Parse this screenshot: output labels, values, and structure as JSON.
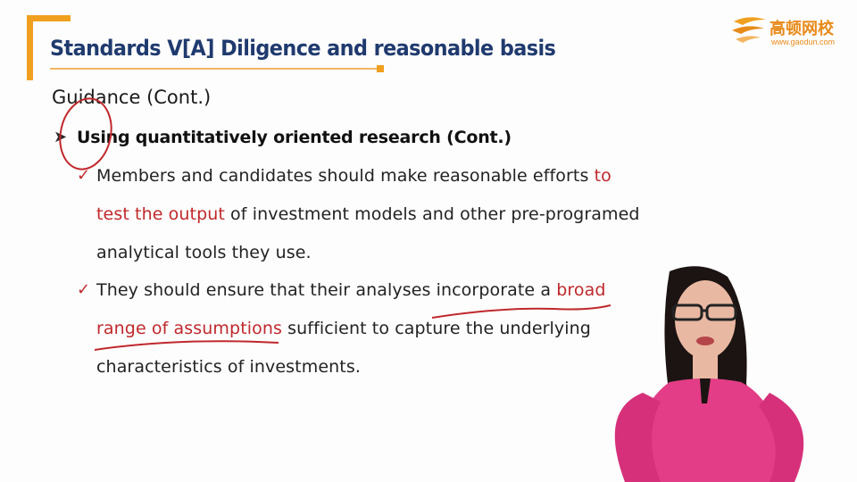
{
  "slide": {
    "title": "Standards V[A] Diligence and reasonable basis",
    "heading": "Guidance (Cont.)",
    "subheading": "Using quantitatively oriented research (Cont.)",
    "bullet1": {
      "line1_a": "Members and candidates should make reasonable efforts ",
      "line1_b": "to",
      "line2_a": "test the output",
      "line2_b": " of investment models and other pre-programed",
      "line3": "analytical tools they use."
    },
    "bullet2": {
      "line1_a": "They should ensure that their analyses incorporate a ",
      "line1_b": "broad",
      "line2_a": "range of assumptions",
      "line2_b": " sufficient to capture the underlying",
      "line3": "characteristics of investments."
    }
  },
  "logo": {
    "name_cn": "高顿网校",
    "url": "www.gaodun.com"
  },
  "colors": {
    "title": "#1f3a6e",
    "accent_orange": "#f0a01e",
    "highlight_red": "#c0282c",
    "presenter_shirt": "#e23d86"
  },
  "icons": [
    "bracket-decoration",
    "logo-mark",
    "check-icon",
    "arrow-icon"
  ]
}
